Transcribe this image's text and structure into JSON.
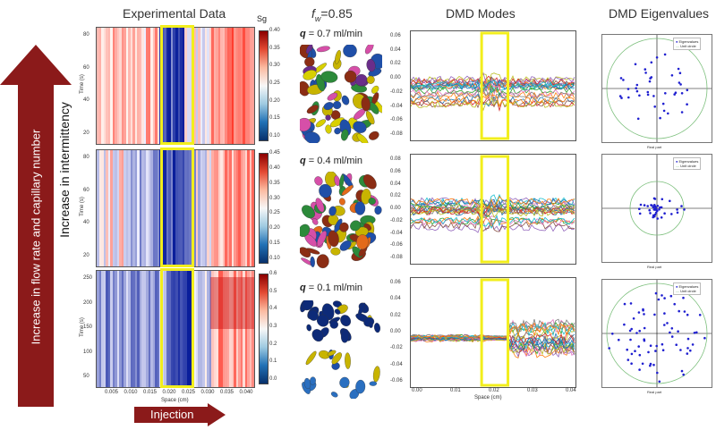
{
  "header": {
    "experimental": "Experimental Data",
    "fw_prefix": "f",
    "fw_sub": "w",
    "fw_value": "=0.85",
    "modes": "DMD Modes",
    "eigen": "DMD Eigenvalues"
  },
  "side": {
    "big_arrow_label": "Increase in flow rate and capillary number",
    "intermittency_label": "Increase in intermittency",
    "injection_label": "Injection"
  },
  "rows": [
    {
      "q_label": "q",
      "q_value": " = 0.7 ml/min"
    },
    {
      "q_label": "q",
      "q_value": " = 0.4 ml/min"
    },
    {
      "q_label": "q",
      "q_value": " = 0.1 ml/min"
    }
  ],
  "heatmap": {
    "colorbar_title": "Sg",
    "ylabel": "Time (s)",
    "xlabel": "Space (cm)",
    "xticks": [
      "0.005",
      "0.010",
      "0.015",
      "0.020",
      "0.025",
      "0.030",
      "0.035",
      "0.040"
    ],
    "panels": [
      {
        "yticks": [
          "80",
          "60",
          "40",
          "20"
        ],
        "cbar_ticks": [
          "0.40",
          "0.35",
          "0.30",
          "0.25",
          "0.20",
          "0.15",
          "0.10"
        ]
      },
      {
        "yticks": [
          "80",
          "60",
          "40",
          "20"
        ],
        "cbar_ticks": [
          "0.45",
          "0.40",
          "0.35",
          "0.30",
          "0.25",
          "0.20",
          "0.15",
          "0.10"
        ]
      },
      {
        "yticks": [
          "250",
          "200",
          "150",
          "100",
          "50"
        ],
        "cbar_ticks": [
          "0.6",
          "0.5",
          "0.4",
          "0.3",
          "0.2",
          "0.1",
          "0.0"
        ]
      }
    ]
  },
  "modes": {
    "xlabel": "Space (cm)",
    "xticks": [
      "0.00",
      "0.01",
      "0.02",
      "0.03",
      "0.04"
    ],
    "panels": [
      {
        "yticks": [
          "0.06",
          "0.04",
          "0.02",
          "0.00",
          "-0.02",
          "-0.04",
          "-0.06",
          "-0.08"
        ]
      },
      {
        "yticks": [
          "0.08",
          "0.06",
          "0.04",
          "0.02",
          "0.00",
          "-0.02",
          "-0.04",
          "-0.06",
          "-0.08"
        ]
      },
      {
        "yticks": [
          "0.06",
          "0.04",
          "0.02",
          "0.00",
          "-0.02",
          "-0.04",
          "-0.06"
        ]
      }
    ]
  },
  "eigen": {
    "legend_points": "Eigenvalues",
    "legend_circle": "Unit circle",
    "xlabel": "Real part",
    "ylabel": "Imaginary part"
  },
  "colors": {
    "arrow": "#8b1a1a",
    "highlight": "#f2ee1c",
    "heat_red": "#d7191c",
    "heat_blue": "#1a3aa0"
  }
}
